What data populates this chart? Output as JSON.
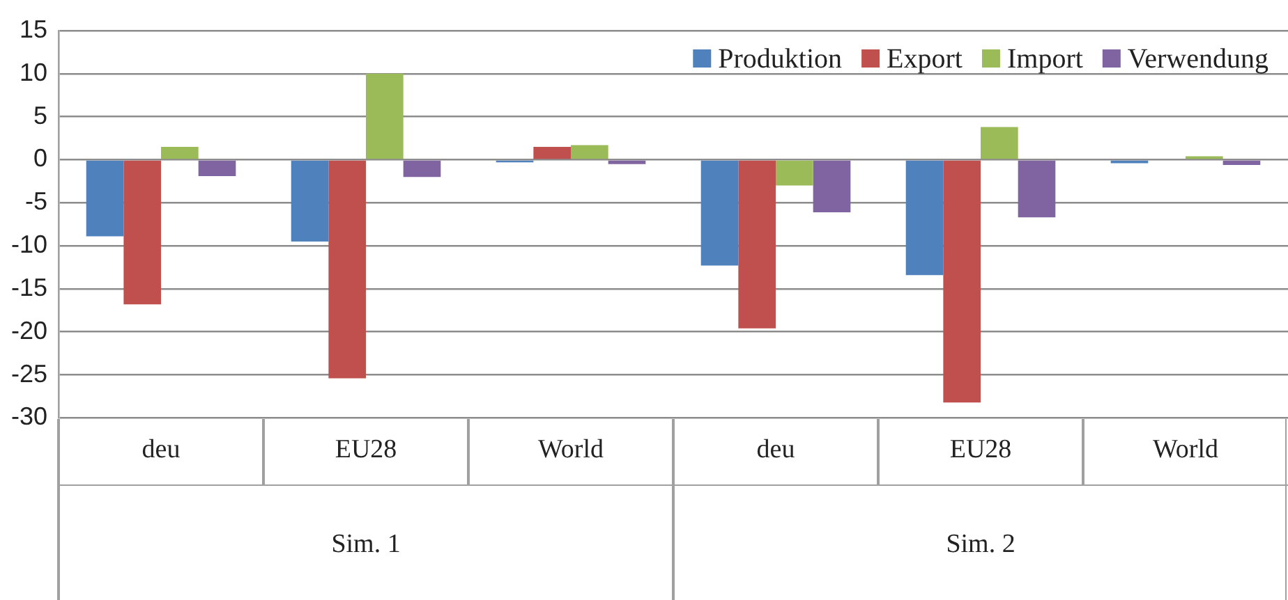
{
  "chart_data": {
    "type": "bar",
    "categories": [
      "deu",
      "EU28",
      "World",
      "deu",
      "EU28",
      "World"
    ],
    "series": [
      {
        "name": "Produktion",
        "color": "#4f81bd",
        "values": [
          -8.9,
          -9.5,
          -0.3,
          -12.3,
          -13.4,
          -0.4
        ]
      },
      {
        "name": "Export",
        "color": "#c0504d",
        "values": [
          -16.8,
          -25.4,
          1.5,
          -19.6,
          -28.2,
          0.1
        ]
      },
      {
        "name": "Import",
        "color": "#9bbb59",
        "values": [
          1.5,
          10.0,
          1.7,
          -3.0,
          3.8,
          0.4
        ]
      },
      {
        "name": "Verwendung",
        "color": "#8064a2",
        "values": [
          -1.9,
          -2.0,
          -0.5,
          -6.1,
          -6.7,
          -0.6
        ]
      }
    ],
    "ylim": [
      -30,
      15
    ],
    "yticks": [
      -30,
      -25,
      -20,
      -15,
      -10,
      -5,
      0,
      5,
      10,
      15
    ],
    "grid": "y",
    "legend": "top right",
    "annotations": [
      "Sim. 1",
      "Sim. 2"
    ]
  }
}
